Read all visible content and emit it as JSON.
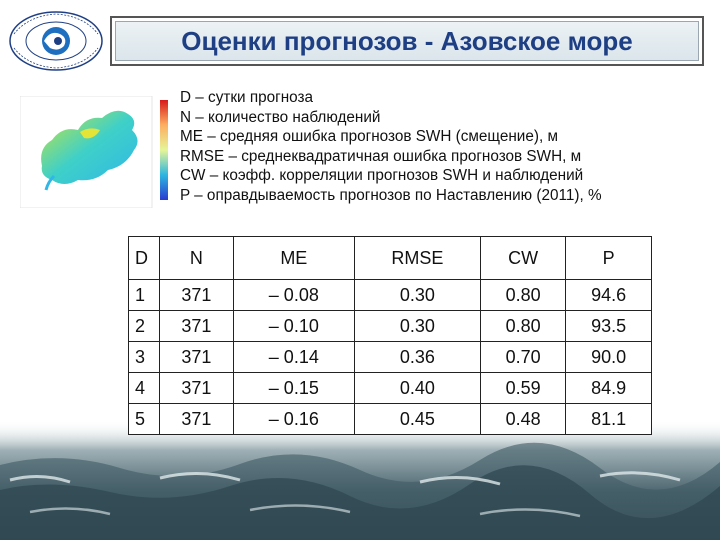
{
  "header": {
    "title": "Оценки прогнозов - Азовское море"
  },
  "logo": {
    "icon": "hydromet-center-logo-icon",
    "text": "Гидрометцентр России"
  },
  "map": {
    "icon": "azov-sea-wave-map-icon"
  },
  "legend": {
    "lines": [
      "D – сутки прогноза",
      "N – количество наблюдений",
      "ME – средняя ошибка прогнозов SWH (смещение), м",
      "RMSE – среднеквадратичная ошибка прогнозов SWH, м",
      "CW – коэфф. корреляции прогнозов SWH и наблюдений",
      "P –  оправдываемость прогнозов по Наставлению (2011), %"
    ]
  },
  "table": {
    "headers": [
      "D",
      "N",
      "ME",
      "RMSE",
      "CW",
      "P"
    ],
    "rows": [
      [
        "1",
        "371",
        "– 0.08",
        "0.30",
        "0.80",
        "94.6"
      ],
      [
        "2",
        "371",
        "– 0.10",
        "0.30",
        "0.80",
        "93.5"
      ],
      [
        "3",
        "371",
        "– 0.14",
        "0.36",
        "0.70",
        "90.0"
      ],
      [
        "4",
        "371",
        "– 0.15",
        "0.40",
        "0.59",
        "84.9"
      ],
      [
        "5",
        "371",
        "– 0.16",
        "0.45",
        "0.48",
        "81.1"
      ]
    ]
  },
  "background": {
    "icon": "sea-waves-photo-icon"
  }
}
